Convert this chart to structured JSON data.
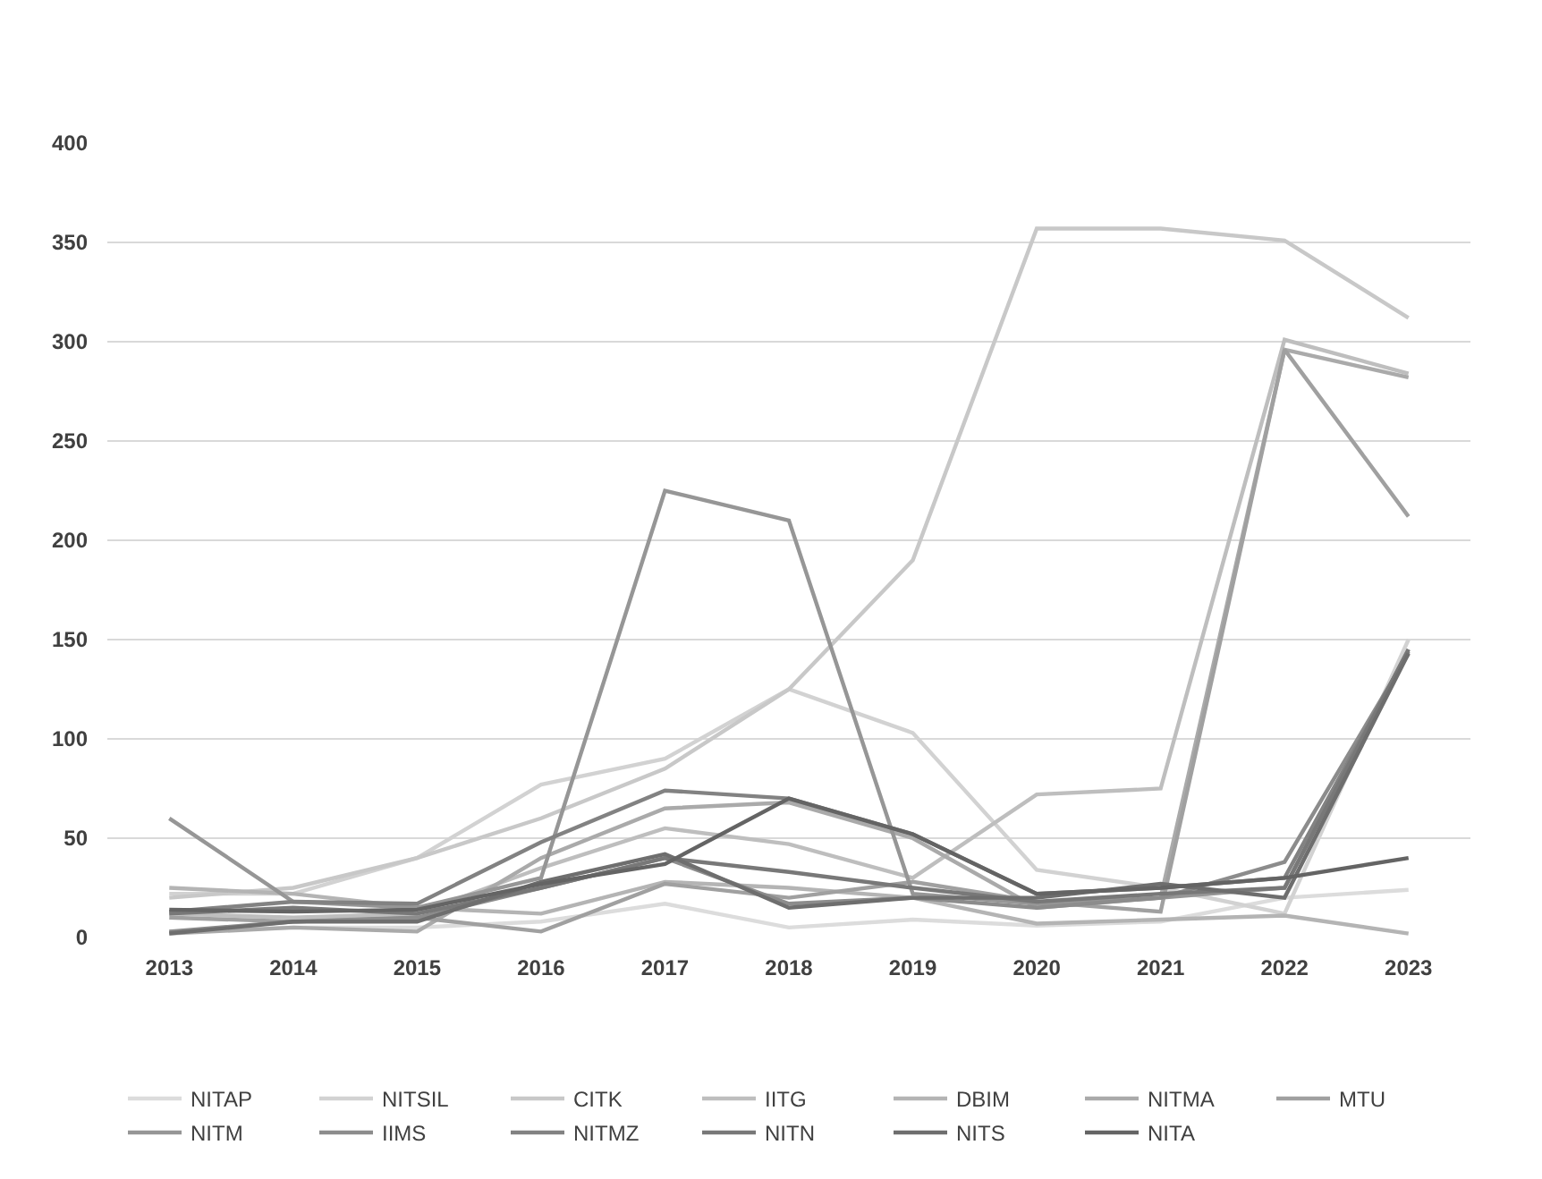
{
  "chart_data": {
    "type": "line",
    "categories": [
      "2013",
      "2014",
      "2015",
      "2016",
      "2017",
      "2018",
      "2019",
      "2020",
      "2021",
      "2022",
      "2023"
    ],
    "ylim": [
      0,
      400
    ],
    "yticks": [
      0,
      50,
      100,
      150,
      200,
      250,
      300,
      350,
      400
    ],
    "grid": "y",
    "legend": "bottom",
    "marker": "none",
    "line_style": "solid",
    "series": [
      {
        "name": "NITAP",
        "color": "#dcdcdc",
        "values": [
          3,
          5,
          5,
          8,
          17,
          5,
          9,
          6,
          8,
          20,
          24
        ]
      },
      {
        "name": "NITSIL",
        "color": "#d2d2d2",
        "values": [
          22,
          22,
          40,
          77,
          90,
          125,
          103,
          34,
          25,
          12,
          150
        ]
      },
      {
        "name": "CITK",
        "color": "#c8c8c8",
        "values": [
          20,
          25,
          40,
          60,
          85,
          125,
          190,
          357,
          357,
          351,
          312
        ]
      },
      {
        "name": "IITG",
        "color": "#bebebe",
        "values": [
          12,
          10,
          12,
          35,
          55,
          47,
          30,
          72,
          75,
          301,
          284
        ]
      },
      {
        "name": "DBIM",
        "color": "#b4b4b4",
        "values": [
          25,
          22,
          15,
          12,
          28,
          25,
          20,
          7,
          9,
          11,
          2
        ]
      },
      {
        "name": "NITMA",
        "color": "#aaaaaa",
        "values": [
          2,
          5,
          3,
          40,
          65,
          68,
          50,
          15,
          20,
          296,
          282
        ]
      },
      {
        "name": "MTU",
        "color": "#a0a0a0",
        "values": [
          10,
          8,
          10,
          3,
          27,
          20,
          28,
          18,
          13,
          296,
          212
        ]
      },
      {
        "name": "NITM",
        "color": "#969696",
        "values": [
          60,
          18,
          15,
          30,
          225,
          210,
          22,
          17,
          20,
          25,
          145
        ]
      },
      {
        "name": "IIMS",
        "color": "#8c8c8c",
        "values": [
          3,
          8,
          10,
          25,
          40,
          17,
          20,
          15,
          20,
          38,
          143
        ]
      },
      {
        "name": "NITMZ",
        "color": "#828282",
        "values": [
          13,
          18,
          17,
          48,
          74,
          70,
          52,
          22,
          25,
          30,
          144
        ]
      },
      {
        "name": "NITN",
        "color": "#787878",
        "values": [
          12,
          15,
          12,
          25,
          40,
          33,
          25,
          18,
          22,
          25,
          145
        ]
      },
      {
        "name": "NITS",
        "color": "#6e6e6e",
        "values": [
          2,
          8,
          8,
          28,
          42,
          15,
          20,
          20,
          27,
          20,
          143
        ]
      },
      {
        "name": "NITA",
        "color": "#646464",
        "values": [
          14,
          13,
          14,
          27,
          37,
          70,
          52,
          22,
          25,
          30,
          40
        ]
      }
    ]
  }
}
